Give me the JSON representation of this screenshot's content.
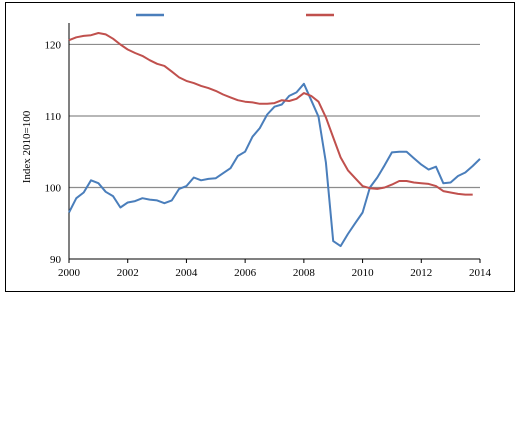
{
  "chart_data": {
    "type": "line",
    "title": "",
    "xlabel": "",
    "ylabel": "Index 2010=100",
    "xlim": [
      2000,
      2014
    ],
    "ylim": [
      90,
      123
    ],
    "xticks": [
      2000,
      2002,
      2004,
      2006,
      2008,
      2010,
      2012,
      2014
    ],
    "yticks": [
      90,
      100,
      110,
      120
    ],
    "grid": "horizontal",
    "legend_position": "top",
    "series": [
      {
        "name": "",
        "color": "#4a7ebb",
        "x": [
          2000.0,
          2000.25,
          2000.5,
          2000.75,
          2001.0,
          2001.25,
          2001.5,
          2001.75,
          2002.0,
          2002.25,
          2002.5,
          2002.75,
          2003.0,
          2003.25,
          2003.5,
          2003.75,
          2004.0,
          2004.25,
          2004.5,
          2004.75,
          2005.0,
          2005.25,
          2005.5,
          2005.75,
          2006.0,
          2006.25,
          2006.5,
          2006.75,
          2007.0,
          2007.25,
          2007.5,
          2007.75,
          2008.0,
          2008.25,
          2008.5,
          2008.75,
          2009.0,
          2009.25,
          2009.5,
          2009.75,
          2010.0,
          2010.25,
          2010.5,
          2010.75,
          2011.0,
          2011.25,
          2011.5,
          2011.75,
          2012.0,
          2012.25,
          2012.5,
          2012.75,
          2013.0,
          2013.25,
          2013.5,
          2013.75,
          2014.0
        ],
        "values": [
          96.5,
          98.5,
          99.3,
          101.0,
          100.6,
          99.4,
          98.8,
          97.2,
          97.9,
          98.1,
          98.5,
          98.3,
          98.2,
          97.8,
          98.2,
          99.8,
          100.2,
          101.4,
          101.0,
          101.2,
          101.3,
          102.0,
          102.7,
          104.4,
          105.0,
          107.1,
          108.3,
          110.2,
          111.3,
          111.6,
          112.8,
          113.3,
          114.5,
          112.2,
          109.9,
          103.5,
          92.5,
          91.8,
          93.5,
          95.0,
          96.5,
          100.0,
          101.4,
          103.1,
          104.9,
          105.0,
          105.0,
          104.1,
          103.2,
          102.5,
          102.9,
          100.6,
          100.7,
          101.6,
          102.1,
          103.0,
          104.0
        ]
      },
      {
        "name": "",
        "color": "#c0504d",
        "x": [
          2000.0,
          2000.25,
          2000.5,
          2000.75,
          2001.0,
          2001.25,
          2001.5,
          2001.75,
          2002.0,
          2002.25,
          2002.5,
          2002.75,
          2003.0,
          2003.25,
          2003.5,
          2003.75,
          2004.0,
          2004.25,
          2004.5,
          2004.75,
          2005.0,
          2005.25,
          2005.5,
          2005.75,
          2006.0,
          2006.25,
          2006.5,
          2006.75,
          2007.0,
          2007.25,
          2007.5,
          2007.75,
          2008.0,
          2008.25,
          2008.5,
          2008.75,
          2009.0,
          2009.25,
          2009.5,
          2009.75,
          2010.0,
          2010.25,
          2010.5,
          2010.75,
          2011.0,
          2011.25,
          2011.5,
          2011.75,
          2012.0,
          2012.25,
          2012.5,
          2012.75,
          2013.0,
          2013.25,
          2013.5,
          2013.75
        ],
        "values": [
          120.6,
          121.0,
          121.2,
          121.3,
          121.6,
          121.4,
          120.8,
          120.0,
          119.3,
          118.8,
          118.4,
          117.8,
          117.3,
          117.0,
          116.2,
          115.4,
          114.9,
          114.6,
          114.2,
          113.9,
          113.5,
          113.0,
          112.6,
          112.2,
          112.0,
          111.9,
          111.7,
          111.7,
          111.8,
          112.2,
          112.1,
          112.4,
          113.2,
          112.8,
          112.0,
          109.8,
          107.0,
          104.2,
          102.4,
          101.3,
          100.2,
          99.9,
          99.8,
          100.0,
          100.4,
          100.9,
          100.9,
          100.7,
          100.6,
          100.5,
          100.2,
          99.5,
          99.3,
          99.1,
          99.0,
          99.0
        ]
      }
    ]
  }
}
